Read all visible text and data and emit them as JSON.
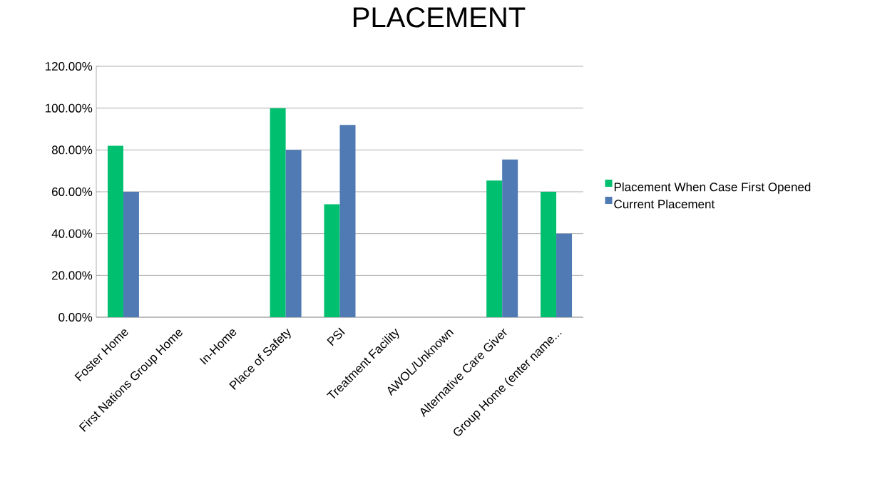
{
  "chart_data": {
    "type": "bar",
    "title": "PLACEMENT",
    "categories": [
      "Foster Home",
      "First Nations Group Home",
      "In-Home",
      "Place of Safety",
      "PSI",
      "Treatment Facility",
      "AWOL/Unknown",
      "Alternative Care Giver",
      "Group Home (enter name..."
    ],
    "series": [
      {
        "name": "Placement When Case First Opened",
        "color": "#00bf6f",
        "values": [
          82,
          0,
          0,
          100,
          54,
          0,
          0,
          65.4,
          60
        ]
      },
      {
        "name": "Current Placement",
        "color": "#4f7ab4",
        "values": [
          60,
          0,
          0,
          80,
          92,
          0,
          0,
          75.4,
          40
        ]
      }
    ],
    "ylim": [
      0,
      120
    ],
    "yticks": [
      {
        "value": 0,
        "label": "0.00%"
      },
      {
        "value": 20,
        "label": "20.00%"
      },
      {
        "value": 40,
        "label": "40.00%"
      },
      {
        "value": 60,
        "label": "60.00%"
      },
      {
        "value": 80,
        "label": "80.00%"
      },
      {
        "value": 100,
        "label": "100.00%"
      },
      {
        "value": 120,
        "label": "120.00%"
      }
    ],
    "grid": "y",
    "legend": "right"
  }
}
